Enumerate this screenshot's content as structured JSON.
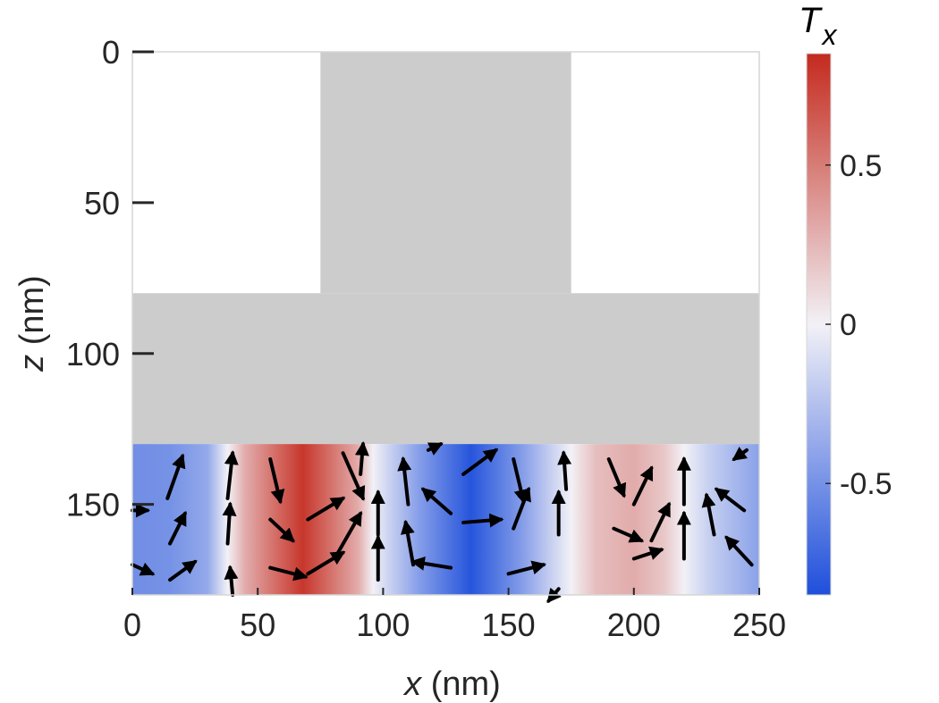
{
  "colors": {
    "neg": "#1f4fdb",
    "mid": "#f2f1f6",
    "pos": "#c42a1e",
    "geometry": "#cccccc",
    "arrow": "#000000"
  },
  "chart_data": {
    "type": "heatmap",
    "xlabel": {
      "var": "x",
      "unit": " (nm)"
    },
    "ylabel": {
      "var": "z",
      "unit": " (nm)"
    },
    "xlim": [
      0,
      250
    ],
    "ylim": [
      0,
      180
    ],
    "x_reversed": false,
    "y_reversed": true,
    "xticks": [
      0,
      50,
      100,
      150,
      200,
      250
    ],
    "yticks": [
      0,
      50,
      100,
      150
    ],
    "geometry": {
      "region": "gray",
      "stem_x": [
        75,
        175
      ],
      "stem_z": [
        0,
        80
      ],
      "slab_z": [
        80,
        130
      ]
    },
    "field": {
      "z_range": [
        130,
        180
      ],
      "profile_x": [
        0,
        15,
        30,
        38,
        45,
        68,
        90,
        96,
        102,
        115,
        135,
        155,
        168,
        175,
        185,
        200,
        212,
        220,
        230,
        250
      ],
      "profile_value": [
        -0.52,
        -0.5,
        -0.38,
        0.0,
        0.3,
        0.8,
        0.3,
        0.0,
        -0.15,
        -0.45,
        -0.82,
        -0.45,
        -0.15,
        0.0,
        0.22,
        0.3,
        0.18,
        0.0,
        -0.18,
        -0.42
      ]
    },
    "arrows": [
      {
        "x": 14,
        "z": 148,
        "dx": 6,
        "dz": -14
      },
      {
        "x": 15,
        "z": 163,
        "dx": 6,
        "dz": -10
      },
      {
        "x": 15,
        "z": 175,
        "dx": 10,
        "dz": -6
      },
      {
        "x": 0,
        "z": 152,
        "dx": 6,
        "dz": 0
      },
      {
        "x": 0,
        "z": 170,
        "dx": 8,
        "dz": 3
      },
      {
        "x": 38,
        "z": 148,
        "dx": 2,
        "dz": -15
      },
      {
        "x": 38,
        "z": 163,
        "dx": 1,
        "dz": -13
      },
      {
        "x": 40,
        "z": 180,
        "dx": -1,
        "dz": -9
      },
      {
        "x": 55,
        "z": 135,
        "dx": 4,
        "dz": 14
      },
      {
        "x": 55,
        "z": 155,
        "dx": 9,
        "dz": 7
      },
      {
        "x": 55,
        "z": 171,
        "dx": 14,
        "dz": 3
      },
      {
        "x": 70,
        "z": 155,
        "dx": 14,
        "dz": -7
      },
      {
        "x": 70,
        "z": 173,
        "dx": 14,
        "dz": -7
      },
      {
        "x": 82,
        "z": 166,
        "dx": 9,
        "dz": -13
      },
      {
        "x": 84,
        "z": 133,
        "dx": 8,
        "dz": 15
      },
      {
        "x": 91,
        "z": 140,
        "dx": 1,
        "dz": -10
      },
      {
        "x": 98,
        "z": 160,
        "dx": 0,
        "dz": -14
      },
      {
        "x": 98,
        "z": 175,
        "dx": 0,
        "dz": -14
      },
      {
        "x": 110,
        "z": 150,
        "dx": -2,
        "dz": -15
      },
      {
        "x": 112,
        "z": 170,
        "dx": -3,
        "dz": -14
      },
      {
        "x": 127,
        "z": 153,
        "dx": -11,
        "dz": -8
      },
      {
        "x": 127,
        "z": 171,
        "dx": -15,
        "dz": -2
      },
      {
        "x": 132,
        "z": 156,
        "dx": 15,
        "dz": -1
      },
      {
        "x": 132,
        "z": 140,
        "dx": 13,
        "dz": -8
      },
      {
        "x": 152,
        "z": 158,
        "dx": 6,
        "dz": -13
      },
      {
        "x": 150,
        "z": 173,
        "dx": 14,
        "dz": -3
      },
      {
        "x": 152,
        "z": 135,
        "dx": 4,
        "dz": 14
      },
      {
        "x": 173,
        "z": 145,
        "dx": -1,
        "dz": -12
      },
      {
        "x": 170,
        "z": 160,
        "dx": 0,
        "dz": -14
      },
      {
        "x": 170,
        "z": 178,
        "dx": -4,
        "dz": 4
      },
      {
        "x": 190,
        "z": 135,
        "dx": 6,
        "dz": 12
      },
      {
        "x": 192,
        "z": 158,
        "dx": 11,
        "dz": 4
      },
      {
        "x": 200,
        "z": 150,
        "dx": 7,
        "dz": -12
      },
      {
        "x": 200,
        "z": 168,
        "dx": 11,
        "dz": -3
      },
      {
        "x": 207,
        "z": 162,
        "dx": 7,
        "dz": -12
      },
      {
        "x": 220,
        "z": 150,
        "dx": 0,
        "dz": -15
      },
      {
        "x": 220,
        "z": 168,
        "dx": 0,
        "dz": -15
      },
      {
        "x": 232,
        "z": 160,
        "dx": -3,
        "dz": -13
      },
      {
        "x": 244,
        "z": 152,
        "dx": -11,
        "dz": -7
      },
      {
        "x": 247,
        "z": 170,
        "dx": -10,
        "dz": -9
      },
      {
        "x": 245,
        "z": 132,
        "dx": -5,
        "dz": 3
      },
      {
        "x": 118,
        "z": 132,
        "dx": 5,
        "dz": -2
      }
    ],
    "colorbar": {
      "title_main": "T",
      "title_sub": "x",
      "range": [
        -0.85,
        0.85
      ],
      "ticks": [
        -0.5,
        0,
        0.5
      ],
      "tick_labels": [
        "-0.5",
        "0",
        "0.5"
      ]
    }
  }
}
